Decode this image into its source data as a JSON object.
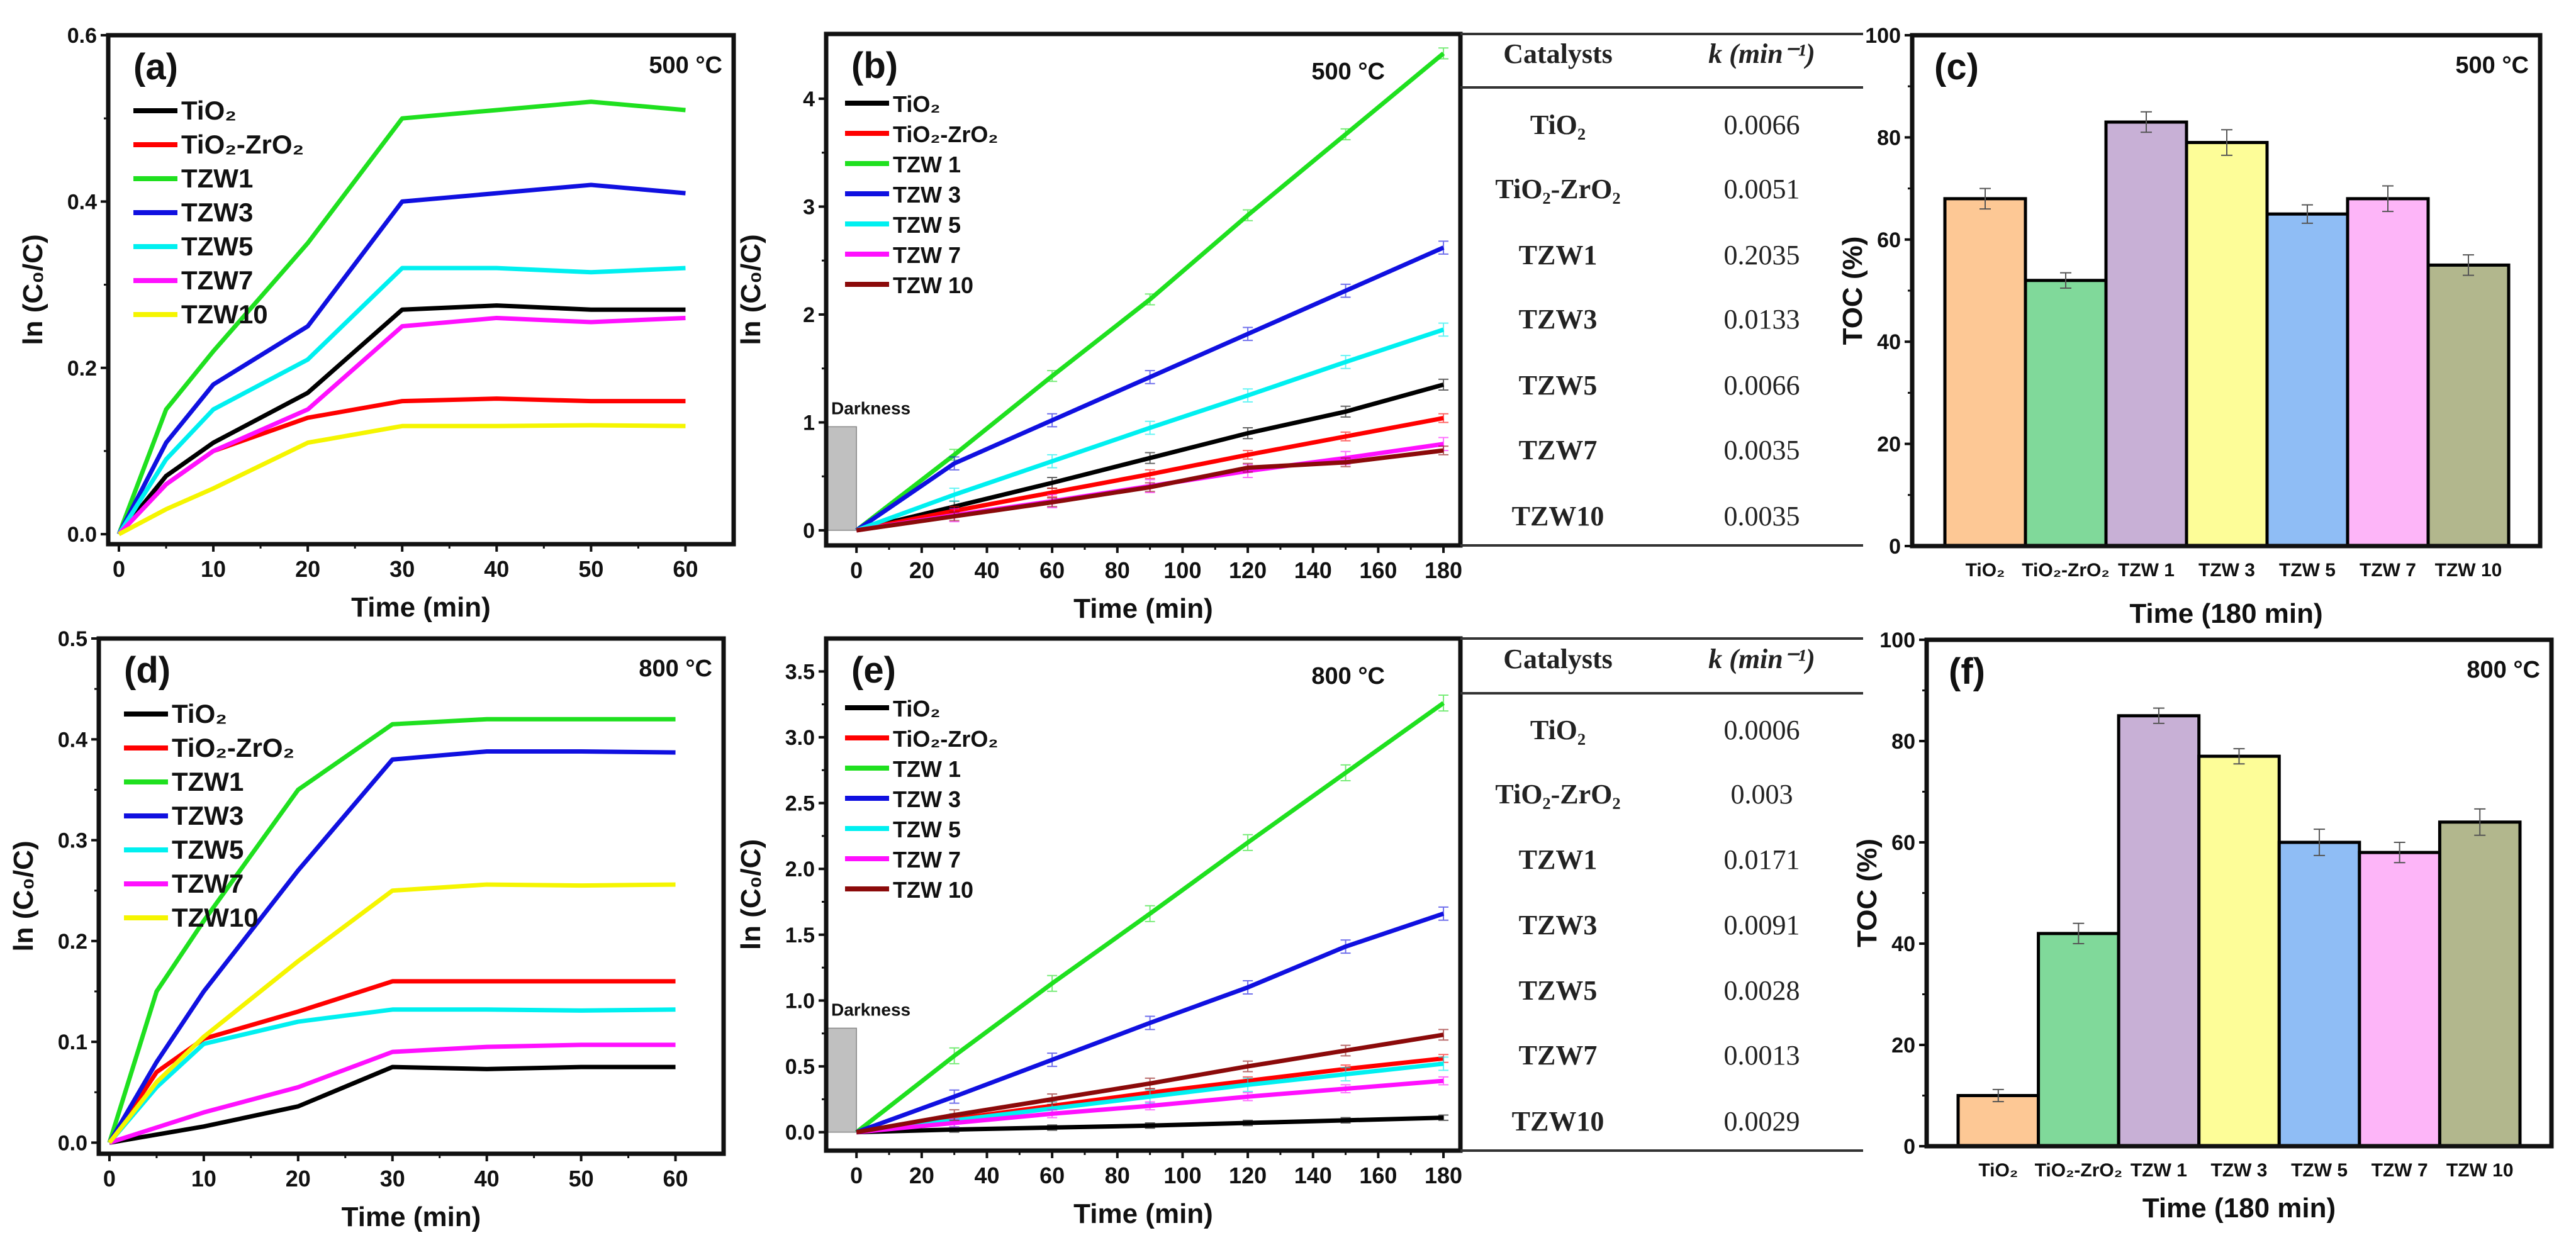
{
  "chart_data": [
    {
      "id": "a",
      "type": "line",
      "panel_label": "(a)",
      "annotation": "500 °C",
      "xlabel": "Time (min)",
      "ylabel": "ln (C₀/C)",
      "xlim": [
        -1.13,
        65.1
      ],
      "ylim": [
        -0.012,
        0.6
      ],
      "xticks": [
        0,
        10,
        20,
        30,
        40,
        50,
        60
      ],
      "yticks": [
        0.0,
        0.2,
        0.4,
        0.6
      ],
      "ytick_decimals": 1,
      "x": [
        0,
        5,
        10,
        20,
        30,
        40,
        50,
        60
      ],
      "series": [
        {
          "name": "TiO₂",
          "color": "#000000",
          "values": [
            0,
            0.07,
            0.11,
            0.17,
            0.27,
            0.275,
            0.27,
            0.27
          ]
        },
        {
          "name": "TiO₂-ZrO₂",
          "color": "#ff0000",
          "values": [
            0,
            0.06,
            0.1,
            0.14,
            0.16,
            0.163,
            0.16,
            0.16
          ]
        },
        {
          "name": "TZW1",
          "color": "#1fe01f",
          "values": [
            0,
            0.15,
            0.22,
            0.35,
            0.5,
            0.51,
            0.52,
            0.51
          ]
        },
        {
          "name": "TZW3",
          "color": "#1010e0",
          "values": [
            0,
            0.11,
            0.18,
            0.25,
            0.4,
            0.41,
            0.42,
            0.41
          ]
        },
        {
          "name": "TZW5",
          "color": "#00f0f0",
          "values": [
            0,
            0.09,
            0.15,
            0.21,
            0.32,
            0.32,
            0.315,
            0.32
          ]
        },
        {
          "name": "TZW7",
          "color": "#ff10ff",
          "values": [
            0,
            0.06,
            0.1,
            0.15,
            0.25,
            0.26,
            0.255,
            0.26
          ]
        },
        {
          "name": "TZW10",
          "color": "#f5f500",
          "values": [
            0,
            0.03,
            0.055,
            0.11,
            0.13,
            0.13,
            0.131,
            0.13
          ]
        }
      ]
    },
    {
      "id": "b",
      "type": "line",
      "panel_label": "(b)",
      "annotation": "500 °C",
      "xlabel": "Time (min)",
      "ylabel": "ln (C₀/C)",
      "xlim": [
        -9.3,
        185.2
      ],
      "ylim": [
        -0.14,
        4.6
      ],
      "xticks": [
        0,
        20,
        40,
        60,
        80,
        100,
        120,
        140,
        160,
        180
      ],
      "yticks": [
        0,
        1,
        2,
        3,
        4
      ],
      "ytick_decimals": 0,
      "darkness": {
        "label": "Darkness",
        "x_range": [
          -9.3,
          0
        ],
        "height": 0.96
      },
      "x": [
        0,
        30,
        60,
        90,
        120,
        150,
        180
      ],
      "series": [
        {
          "name": "TiO₂",
          "color": "#000000",
          "err": 0.05,
          "values": [
            0,
            0.22,
            0.44,
            0.67,
            0.9,
            1.1,
            1.35
          ]
        },
        {
          "name": "TiO₂-ZrO₂",
          "color": "#ff0000",
          "err": 0.04,
          "values": [
            0,
            0.18,
            0.35,
            0.52,
            0.7,
            0.87,
            1.04
          ]
        },
        {
          "name": "TZW 1",
          "color": "#1fe01f",
          "err": 0.05,
          "values": [
            0,
            0.7,
            1.43,
            2.14,
            2.92,
            3.67,
            4.42
          ]
        },
        {
          "name": "TZW 3",
          "color": "#1010e0",
          "err": 0.06,
          "values": [
            0,
            0.62,
            1.02,
            1.42,
            1.82,
            2.22,
            2.62
          ]
        },
        {
          "name": "TZW 5",
          "color": "#00f0f0",
          "err": 0.06,
          "values": [
            0,
            0.33,
            0.64,
            0.95,
            1.25,
            1.56,
            1.86
          ]
        },
        {
          "name": "TZW 7",
          "color": "#ff10ff",
          "err": 0.06,
          "values": [
            0,
            0.14,
            0.27,
            0.41,
            0.55,
            0.67,
            0.8
          ]
        },
        {
          "name": "TZW 10",
          "color": "#8b0a0a",
          "err": 0.04,
          "values": [
            0,
            0.13,
            0.26,
            0.4,
            0.58,
            0.63,
            0.74
          ]
        }
      ]
    },
    {
      "id": "c",
      "type": "bar",
      "panel_label": "(c)",
      "annotation": "500 °C",
      "xlabel": "Time (180 min)",
      "ylabel": "TOC (%)",
      "ylim": [
        0,
        100
      ],
      "yticks": [
        0,
        20,
        40,
        60,
        80,
        100
      ],
      "categories": [
        "TiO₂",
        "TiO₂-ZrO₂",
        "TZW 1",
        "TZW 3",
        "TZW 5",
        "TZW 7",
        "TZW 10"
      ],
      "values": [
        68,
        52,
        83,
        79,
        65,
        68,
        55
      ],
      "errors": [
        2.0,
        1.5,
        2.0,
        2.5,
        1.8,
        2.5,
        2.0
      ],
      "colors": [
        "#fdc895",
        "#80d99a",
        "#c8b0d6",
        "#fdfd98",
        "#8fbdf5",
        "#fdb5f8",
        "#b2b78d"
      ]
    },
    {
      "id": "d",
      "type": "line",
      "panel_label": "(d)",
      "annotation": "800 °C",
      "xlabel": "Time (min)",
      "ylabel": "ln (C₀/C)",
      "xlim": [
        -1.13,
        65.1
      ],
      "ylim": [
        -0.011,
        0.5
      ],
      "xticks": [
        0,
        10,
        20,
        30,
        40,
        50,
        60
      ],
      "yticks": [
        0.0,
        0.1,
        0.2,
        0.3,
        0.4,
        0.5
      ],
      "ytick_decimals": 1,
      "x": [
        0,
        5,
        10,
        20,
        30,
        40,
        50,
        60
      ],
      "series": [
        {
          "name": "TiO₂",
          "color": "#000000",
          "values": [
            0,
            0.008,
            0.016,
            0.036,
            0.075,
            0.073,
            0.075,
            0.075
          ]
        },
        {
          "name": "TiO₂-ZrO₂",
          "color": "#ff0000",
          "values": [
            0,
            0.07,
            0.103,
            0.13,
            0.16,
            0.16,
            0.16,
            0.16
          ]
        },
        {
          "name": "TZW1",
          "color": "#1fe01f",
          "values": [
            0,
            0.15,
            0.22,
            0.35,
            0.415,
            0.42,
            0.42,
            0.42
          ]
        },
        {
          "name": "TZW3",
          "color": "#1010e0",
          "values": [
            0,
            0.08,
            0.15,
            0.27,
            0.38,
            0.388,
            0.388,
            0.387
          ]
        },
        {
          "name": "TZW5",
          "color": "#00f0f0",
          "values": [
            0,
            0.055,
            0.098,
            0.12,
            0.132,
            0.132,
            0.131,
            0.132
          ]
        },
        {
          "name": "TZW7",
          "color": "#ff10ff",
          "values": [
            0,
            0.015,
            0.03,
            0.055,
            0.09,
            0.095,
            0.097,
            0.097
          ]
        },
        {
          "name": "TZW10",
          "color": "#f5f500",
          "values": [
            0,
            0.06,
            0.105,
            0.18,
            0.25,
            0.256,
            0.255,
            0.256
          ]
        }
      ]
    },
    {
      "id": "e",
      "type": "line",
      "panel_label": "(e)",
      "annotation": "800 °C",
      "xlabel": "Time (min)",
      "ylabel": "ln (C₀/C)",
      "xlim": [
        -9.3,
        185.2
      ],
      "ylim": [
        -0.14,
        3.75
      ],
      "xticks": [
        0,
        20,
        40,
        60,
        80,
        100,
        120,
        140,
        160,
        180
      ],
      "yticks": [
        0.0,
        0.5,
        1.0,
        1.5,
        2.0,
        2.5,
        3.0,
        3.5
      ],
      "ytick_decimals": 1,
      "darkness": {
        "label": "Darkness",
        "x_range": [
          -9.3,
          0
        ],
        "height": 0.79
      },
      "x": [
        0,
        30,
        60,
        90,
        120,
        150,
        180
      ],
      "series": [
        {
          "name": "TiO₂",
          "color": "#000000",
          "err": 0.02,
          "values": [
            0,
            0.02,
            0.035,
            0.05,
            0.07,
            0.09,
            0.11
          ]
        },
        {
          "name": "TiO₂-ZrO₂",
          "color": "#ff0000",
          "err": 0.03,
          "values": [
            0,
            0.1,
            0.2,
            0.3,
            0.39,
            0.48,
            0.56
          ]
        },
        {
          "name": "TZW 1",
          "color": "#1fe01f",
          "err": 0.06,
          "values": [
            0,
            0.58,
            1.13,
            1.66,
            2.2,
            2.73,
            3.26
          ]
        },
        {
          "name": "TZW 3",
          "color": "#1010e0",
          "err": 0.05,
          "values": [
            0,
            0.27,
            0.55,
            0.83,
            1.1,
            1.41,
            1.66
          ]
        },
        {
          "name": "TZW 5",
          "color": "#00f0f0",
          "err": 0.05,
          "values": [
            0,
            0.09,
            0.18,
            0.27,
            0.36,
            0.44,
            0.52
          ]
        },
        {
          "name": "TZW 7",
          "color": "#ff10ff",
          "err": 0.03,
          "values": [
            0,
            0.07,
            0.14,
            0.2,
            0.27,
            0.33,
            0.39
          ]
        },
        {
          "name": "TZW 10",
          "color": "#8b0a0a",
          "err": 0.04,
          "values": [
            0,
            0.13,
            0.25,
            0.37,
            0.5,
            0.62,
            0.74
          ]
        }
      ]
    },
    {
      "id": "f",
      "type": "bar",
      "panel_label": "(f)",
      "annotation": "800 °C",
      "xlabel": "Time (180 min)",
      "ylabel": "TOC (%)",
      "ylim": [
        0,
        100
      ],
      "yticks": [
        0,
        20,
        40,
        60,
        80,
        100
      ],
      "categories": [
        "TiO₂",
        "TiO₂-ZrO₂",
        "TZW 1",
        "TZW 3",
        "TZW 5",
        "TZW 7",
        "TZW 10"
      ],
      "values": [
        10,
        42,
        85,
        77,
        60,
        58,
        64
      ],
      "errors": [
        1.2,
        2.0,
        1.5,
        1.5,
        2.6,
        2.0,
        2.6
      ],
      "colors": [
        "#fdc895",
        "#80d99a",
        "#c8b0d6",
        "#fdfd98",
        "#8fbdf5",
        "#fdb5f8",
        "#b2b78d"
      ]
    }
  ],
  "tables": [
    {
      "headers": [
        "Catalysts",
        "k (min⁻¹)"
      ],
      "rows": [
        [
          "TiO₂",
          "0.0066"
        ],
        [
          "TiO₂-ZrO₂",
          "0.0051"
        ],
        [
          "TZW1",
          "0.2035"
        ],
        [
          "TZW3",
          "0.0133"
        ],
        [
          "TZW5",
          "0.0066"
        ],
        [
          "TZW7",
          "0.0035"
        ],
        [
          "TZW10",
          "0.0035"
        ]
      ]
    },
    {
      "headers": [
        "Catalysts",
        "k (min⁻¹)"
      ],
      "rows": [
        [
          "TiO₂",
          "0.0006"
        ],
        [
          "TiO₂-ZrO₂",
          "0.003"
        ],
        [
          "TZW1",
          "0.0171"
        ],
        [
          "TZW3",
          "0.0091"
        ],
        [
          "TZW5",
          "0.0028"
        ],
        [
          "TZW7",
          "0.0013"
        ],
        [
          "TZW10",
          "0.0029"
        ]
      ]
    }
  ]
}
